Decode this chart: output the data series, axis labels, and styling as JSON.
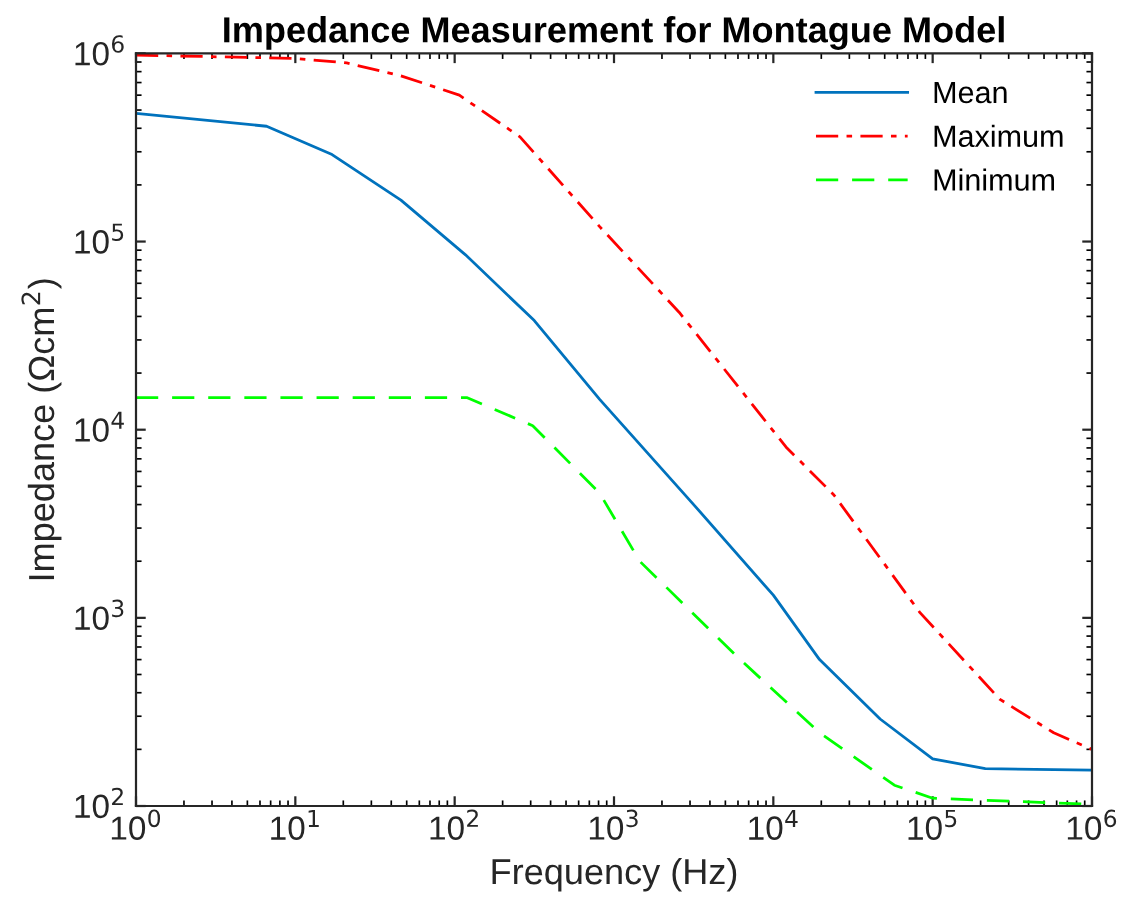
{
  "chart_data": {
    "type": "line",
    "title": "Impedance Measurement for Montague Model",
    "xlabel": "Frequency (Hz)",
    "ylabel": "Impedance (Ωcm$^{2}$)",
    "log": "xy",
    "xlim": [
      1,
      1000000
    ],
    "ylim": [
      100,
      1000000
    ],
    "xticks": [
      {
        "value": 1,
        "label": "10$^{0}$"
      },
      {
        "value": 10,
        "label": "10$^{1}$"
      },
      {
        "value": 100,
        "label": "10$^{2}$"
      },
      {
        "value": 1000,
        "label": "10$^{3}$"
      },
      {
        "value": 10000,
        "label": "10$^{4}$"
      },
      {
        "value": 100000,
        "label": "10$^{5}$"
      },
      {
        "value": 1000000,
        "label": "10$^{6}$"
      }
    ],
    "yticks": [
      {
        "value": 100,
        "label": "10$^{2}$"
      },
      {
        "value": 1000,
        "label": "10$^{3}$"
      },
      {
        "value": 10000,
        "label": "10$^{4}$"
      },
      {
        "value": 100000,
        "label": "10$^{5}$"
      },
      {
        "value": 1000000,
        "label": "10$^{6}$"
      }
    ],
    "grid": false,
    "legend": "top right",
    "marker": "none",
    "series": [
      {
        "name": "Mean",
        "color": "#0072bd",
        "line_style": "solid",
        "x": [
          1,
          6.6,
          17,
          46,
          117,
          316,
          813,
          3162,
          10000,
          19500,
          46800,
          100000,
          214000,
          1000000
        ],
        "values": [
          480000,
          410000,
          290000,
          166000,
          85000,
          38000,
          14500,
          4000,
          1320,
          600,
          290,
          178,
          158,
          155
        ]
      },
      {
        "name": "Maximum",
        "color": "#ff0000",
        "line_style": "dashdot",
        "x": [
          1,
          10,
          21,
          46,
          107,
          257,
          813,
          2570,
          12000,
          24000,
          83000,
          263000,
          575000,
          1000000
        ],
        "values": [
          980000,
          940000,
          890000,
          760000,
          600000,
          360000,
          120000,
          42000,
          8100,
          4500,
          1070,
          370,
          245,
          200
        ]
      },
      {
        "name": "Minimum",
        "color": "#00ff00",
        "line_style": "dashed",
        "x": [
          1,
          10,
          120,
          309,
          813,
          1450,
          6200,
          19500,
          57500,
          100000,
          1000000
        ],
        "values": [
          14800,
          14800,
          14800,
          10500,
          4600,
          2000,
          600,
          245,
          129,
          110,
          102
        ]
      }
    ]
  }
}
